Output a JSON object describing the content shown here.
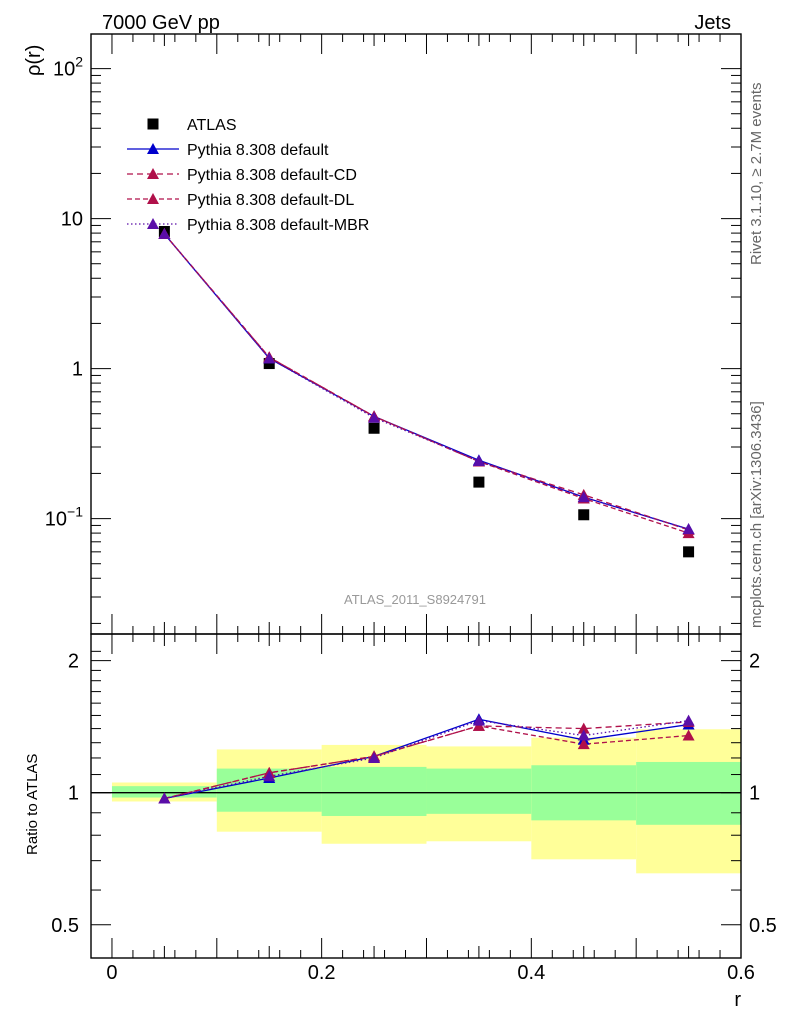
{
  "header": {
    "left": "7000 GeV pp",
    "right": "Jets"
  },
  "side_labels": {
    "rivet": "Rivet 3.1.10, ≥ 2.7M events",
    "mcplots": "mcplots.cern.ch [arXiv:1306.3436]"
  },
  "watermark": "ATLAS_2011_S8924791",
  "colors": {
    "atlas": "#000000",
    "default": "#0000cc",
    "cd": "#b0104a",
    "dl": "#b0104a",
    "mbr": "#5a0ea8",
    "band_yellow": "#ffff99",
    "band_green": "#99ff99"
  },
  "chart_data": [
    {
      "type": "scatter",
      "name": "main",
      "ylabel": "ρ(r)",
      "ylog": true,
      "xlim": [
        -0.02,
        0.6
      ],
      "ylim": [
        0.017,
        170
      ],
      "yticks": [
        {
          "v": 100,
          "t": "10",
          "e": "2"
        },
        {
          "v": 10,
          "t": "10",
          "e": ""
        },
        {
          "v": 1,
          "t": "1",
          "e": ""
        },
        {
          "v": 0.1,
          "t": "10",
          "e": "−1"
        }
      ],
      "legend_position": "top-left",
      "series": [
        {
          "name": "ATLAS",
          "style": "data",
          "x": [
            0.05,
            0.15,
            0.25,
            0.35,
            0.45,
            0.55
          ],
          "y": [
            8.2,
            1.08,
            0.4,
            0.175,
            0.106,
            0.06
          ]
        },
        {
          "name": "Pythia 8.308 default",
          "style": "default",
          "x": [
            0.05,
            0.15,
            0.25,
            0.35,
            0.45,
            0.55
          ],
          "y": [
            7.9,
            1.17,
            0.48,
            0.245,
            0.139,
            0.085
          ]
        },
        {
          "name": "Pythia 8.308 default-CD",
          "style": "cd",
          "x": [
            0.05,
            0.15,
            0.25,
            0.35,
            0.45,
            0.55
          ],
          "y": [
            7.9,
            1.19,
            0.48,
            0.24,
            0.144,
            0.084
          ]
        },
        {
          "name": "Pythia 8.308 default-DL",
          "style": "dl",
          "x": [
            0.05,
            0.15,
            0.25,
            0.35,
            0.45,
            0.55
          ],
          "y": [
            7.9,
            1.19,
            0.48,
            0.24,
            0.136,
            0.08
          ]
        },
        {
          "name": "Pythia 8.308 default-MBR",
          "style": "mbr",
          "x": [
            0.05,
            0.15,
            0.25,
            0.35,
            0.45,
            0.55
          ],
          "y": [
            7.9,
            1.17,
            0.47,
            0.242,
            0.139,
            0.085
          ]
        }
      ]
    },
    {
      "type": "line",
      "name": "ratio",
      "ylabel": "Ratio to ATLAS",
      "xlabel": "r",
      "xlim": [
        -0.02,
        0.6
      ],
      "ylim": [
        0.42,
        2.3
      ],
      "ylog": true,
      "xticks": [
        0,
        0.2,
        0.4,
        0.6
      ],
      "xtick_labels": [
        "0",
        "0.2",
        "0.4",
        "0.6"
      ],
      "yticks": [
        0.5,
        1,
        2
      ],
      "ytick_labels": [
        "0.5",
        "1",
        "2"
      ],
      "bands": [
        {
          "x0": 0.0,
          "x1": 0.1,
          "yellow": [
            0.955,
            1.055
          ],
          "green": [
            0.975,
            1.035
          ]
        },
        {
          "x0": 0.1,
          "x1": 0.2,
          "yellow": [
            0.815,
            1.255
          ],
          "green": [
            0.905,
            1.135
          ]
        },
        {
          "x0": 0.2,
          "x1": 0.3,
          "yellow": [
            0.765,
            1.285
          ],
          "green": [
            0.885,
            1.145
          ]
        },
        {
          "x0": 0.3,
          "x1": 0.4,
          "yellow": [
            0.775,
            1.275
          ],
          "green": [
            0.895,
            1.135
          ]
        },
        {
          "x0": 0.4,
          "x1": 0.5,
          "yellow": [
            0.705,
            1.335
          ],
          "green": [
            0.865,
            1.155
          ]
        },
        {
          "x0": 0.5,
          "x1": 0.6,
          "yellow": [
            0.655,
            1.395
          ],
          "green": [
            0.845,
            1.175
          ]
        }
      ],
      "series": [
        {
          "name": "Pythia 8.308 default",
          "style": "default",
          "x": [
            0.05,
            0.15,
            0.25,
            0.35,
            0.45,
            0.55
          ],
          "y": [
            0.97,
            1.08,
            1.21,
            1.47,
            1.32,
            1.43
          ]
        },
        {
          "name": "Pythia 8.308 default-CD",
          "style": "cd",
          "x": [
            0.05,
            0.15,
            0.25,
            0.35,
            0.45,
            0.55
          ],
          "y": [
            0.97,
            1.11,
            1.21,
            1.42,
            1.4,
            1.45
          ]
        },
        {
          "name": "Pythia 8.308 default-DL",
          "style": "dl",
          "x": [
            0.05,
            0.15,
            0.25,
            0.35,
            0.45,
            0.55
          ],
          "y": [
            0.97,
            1.11,
            1.21,
            1.42,
            1.29,
            1.35
          ]
        },
        {
          "name": "Pythia 8.308 default-MBR",
          "style": "mbr",
          "x": [
            0.05,
            0.15,
            0.25,
            0.35,
            0.45,
            0.55
          ],
          "y": [
            0.97,
            1.09,
            1.2,
            1.46,
            1.35,
            1.46
          ]
        }
      ]
    }
  ]
}
